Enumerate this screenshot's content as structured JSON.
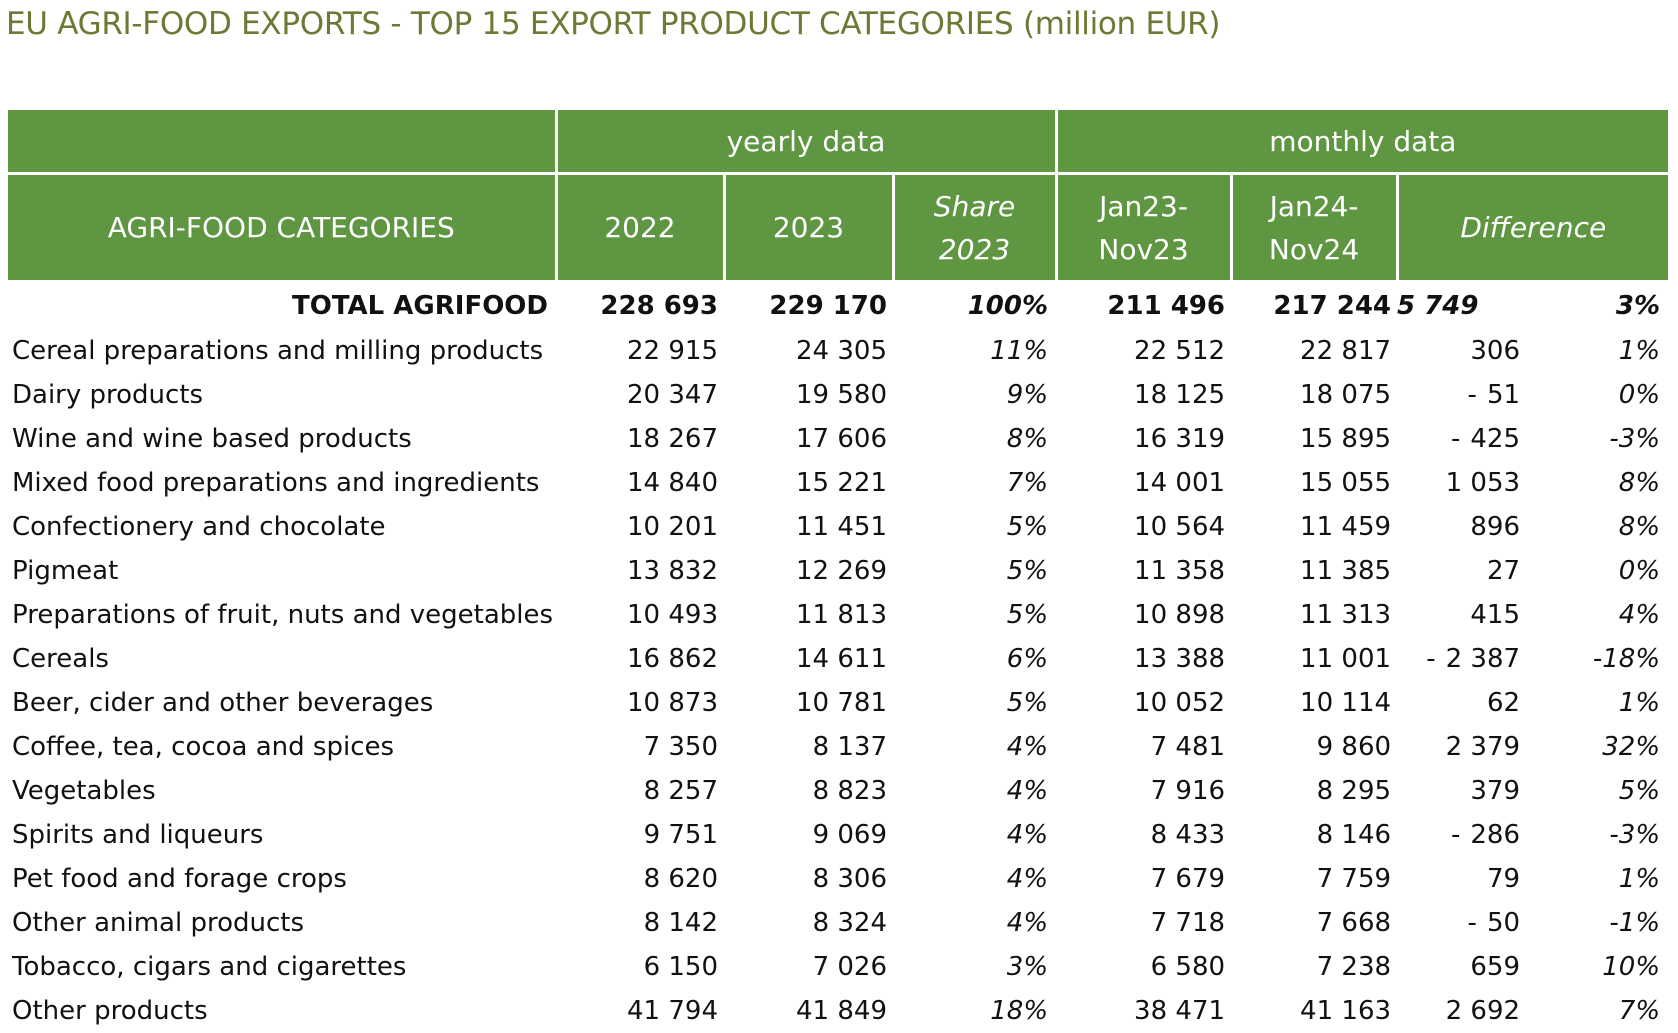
{
  "title": "EU AGRI-FOOD EXPORTS - TOP 15 EXPORT PRODUCT CATEGORIES (million EUR)",
  "chart_data": {
    "type": "table",
    "header_groups": [
      "yearly data",
      "monthly data"
    ],
    "columns": {
      "category": "AGRI-FOOD CATEGORIES",
      "y2022": "2022",
      "y2023": "2023",
      "share_l1": "Share",
      "share_l2": "2023",
      "m23_l1": "Jan23-",
      "m23_l2": "Nov23",
      "m24_l1": "Jan24-",
      "m24_l2": "Nov24",
      "difference": "Difference"
    },
    "total": {
      "category": "TOTAL AGRIFOOD",
      "y2022": "228 693",
      "y2023": "229 170",
      "share": "100%",
      "m23": "211 496",
      "m24": "217 244",
      "diff_abs": "5 749",
      "diff_pct": "3%"
    },
    "rows": [
      {
        "category": "Cereal preparations and milling products",
        "y2022": "22 915",
        "y2023": "24 305",
        "share": "11%",
        "m23": "22 512",
        "m24": "22 817",
        "diff_sign": "",
        "diff_abs": "306",
        "diff_pct": "1%"
      },
      {
        "category": "Dairy products",
        "y2022": "20 347",
        "y2023": "19 580",
        "share": "9%",
        "m23": "18 125",
        "m24": "18 075",
        "diff_sign": "-",
        "diff_abs": "51",
        "diff_pct": "0%"
      },
      {
        "category": "Wine and wine based products",
        "y2022": "18 267",
        "y2023": "17 606",
        "share": "8%",
        "m23": "16 319",
        "m24": "15 895",
        "diff_sign": "-",
        "diff_abs": "425",
        "diff_pct": "-3%"
      },
      {
        "category": "Mixed food preparations and ingredients",
        "y2022": "14 840",
        "y2023": "15 221",
        "share": "7%",
        "m23": "14 001",
        "m24": "15 055",
        "diff_sign": "",
        "diff_abs": "1 053",
        "diff_pct": "8%"
      },
      {
        "category": "Confectionery and chocolate",
        "y2022": "10 201",
        "y2023": "11 451",
        "share": "5%",
        "m23": "10 564",
        "m24": "11 459",
        "diff_sign": "",
        "diff_abs": "896",
        "diff_pct": "8%"
      },
      {
        "category": "Pigmeat",
        "y2022": "13 832",
        "y2023": "12 269",
        "share": "5%",
        "m23": "11 358",
        "m24": "11 385",
        "diff_sign": "",
        "diff_abs": "27",
        "diff_pct": "0%"
      },
      {
        "category": "Preparations of fruit, nuts and vegetables",
        "y2022": "10 493",
        "y2023": "11 813",
        "share": "5%",
        "m23": "10 898",
        "m24": "11 313",
        "diff_sign": "",
        "diff_abs": "415",
        "diff_pct": "4%"
      },
      {
        "category": "Cereals",
        "y2022": "16 862",
        "y2023": "14 611",
        "share": "6%",
        "m23": "13 388",
        "m24": "11 001",
        "diff_sign": "-",
        "diff_abs": "2 387",
        "diff_pct": "-18%"
      },
      {
        "category": "Beer, cider and other beverages",
        "y2022": "10 873",
        "y2023": "10 781",
        "share": "5%",
        "m23": "10 052",
        "m24": "10 114",
        "diff_sign": "",
        "diff_abs": "62",
        "diff_pct": "1%"
      },
      {
        "category": "Coffee, tea, cocoa and spices",
        "y2022": "7 350",
        "y2023": "8 137",
        "share": "4%",
        "m23": "7 481",
        "m24": "9 860",
        "diff_sign": "",
        "diff_abs": "2 379",
        "diff_pct": "32%"
      },
      {
        "category": "Vegetables",
        "y2022": "8 257",
        "y2023": "8 823",
        "share": "4%",
        "m23": "7 916",
        "m24": "8 295",
        "diff_sign": "",
        "diff_abs": "379",
        "diff_pct": "5%"
      },
      {
        "category": "Spirits and liqueurs",
        "y2022": "9 751",
        "y2023": "9 069",
        "share": "4%",
        "m23": "8 433",
        "m24": "8 146",
        "diff_sign": "-",
        "diff_abs": "286",
        "diff_pct": "-3%"
      },
      {
        "category": "Pet food and forage crops",
        "y2022": "8 620",
        "y2023": "8 306",
        "share": "4%",
        "m23": "7 679",
        "m24": "7 759",
        "diff_sign": "",
        "diff_abs": "79",
        "diff_pct": "1%"
      },
      {
        "category": "Other animal products",
        "y2022": "8 142",
        "y2023": "8 324",
        "share": "4%",
        "m23": "7 718",
        "m24": "7 668",
        "diff_sign": "-",
        "diff_abs": "50",
        "diff_pct": "-1%"
      },
      {
        "category": "Tobacco, cigars and cigarettes",
        "y2022": "6 150",
        "y2023": "7 026",
        "share": "3%",
        "m23": "6 580",
        "m24": "7 238",
        "diff_sign": "",
        "diff_abs": "659",
        "diff_pct": "10%"
      },
      {
        "category": "Other products",
        "y2022": "41 794",
        "y2023": "41 849",
        "share": "18%",
        "m23": "38 471",
        "m24": "41 163",
        "diff_sign": "",
        "diff_abs": "2 692",
        "diff_pct": "7%"
      }
    ]
  },
  "colors": {
    "header_bg": "#5f9641",
    "header_text": "#ffffff",
    "title_text": "#6b7a35"
  }
}
